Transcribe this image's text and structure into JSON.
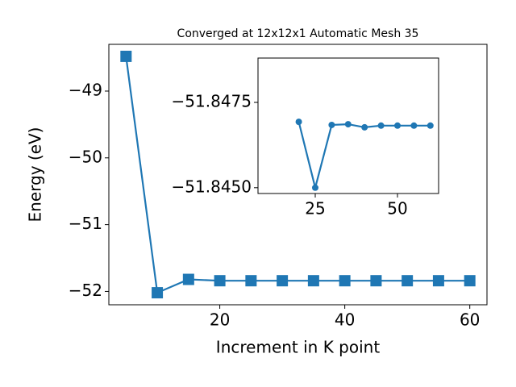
{
  "chart_data": [
    {
      "type": "line",
      "title": "Converged at 12x12x1 Automatic Mesh 35",
      "x_label": "Increment in K point",
      "y_label": "Energy (eV)",
      "x": [
        5,
        10,
        15,
        20,
        25,
        30,
        35,
        40,
        45,
        50,
        55,
        60
      ],
      "series": [
        {
          "color": "#1f77b4",
          "marker": "square",
          "values": [
            -48.48,
            -52.02,
            -51.82,
            -51.84,
            -51.84,
            -51.84,
            -51.84,
            -51.84,
            -51.84,
            -51.84,
            -51.84,
            -51.84
          ]
        }
      ],
      "xlim": [
        2.25,
        62.75
      ],
      "ylim": [
        -52.2,
        -48.3
      ],
      "xticks": [
        20,
        40,
        60
      ],
      "yticks": [
        {
          "value": -52,
          "label": "−52"
        },
        {
          "value": -51,
          "label": "−51"
        },
        {
          "value": -50,
          "label": "−50"
        },
        {
          "value": -49,
          "label": "−49"
        }
      ]
    },
    {
      "type": "line",
      "x": [
        20,
        25,
        30,
        35,
        40,
        45,
        50,
        55,
        60
      ],
      "series": [
        {
          "color": "#1f77b4",
          "marker": "circle",
          "values": [
            -51.84693,
            -51.845,
            -51.84684,
            -51.84686,
            -51.84677,
            -51.84682,
            -51.84682,
            -51.84682,
            -51.84682
          ]
        }
      ],
      "xlim": [
        7.6,
        62.5
      ],
      "ylim": [
        -51.84483,
        -51.8488
      ],
      "xticks": [
        25,
        50
      ],
      "yticks": [
        {
          "value": -51.845,
          "label": "−51.8450"
        },
        {
          "value": -51.8475,
          "label": "−51.8475"
        }
      ]
    }
  ]
}
